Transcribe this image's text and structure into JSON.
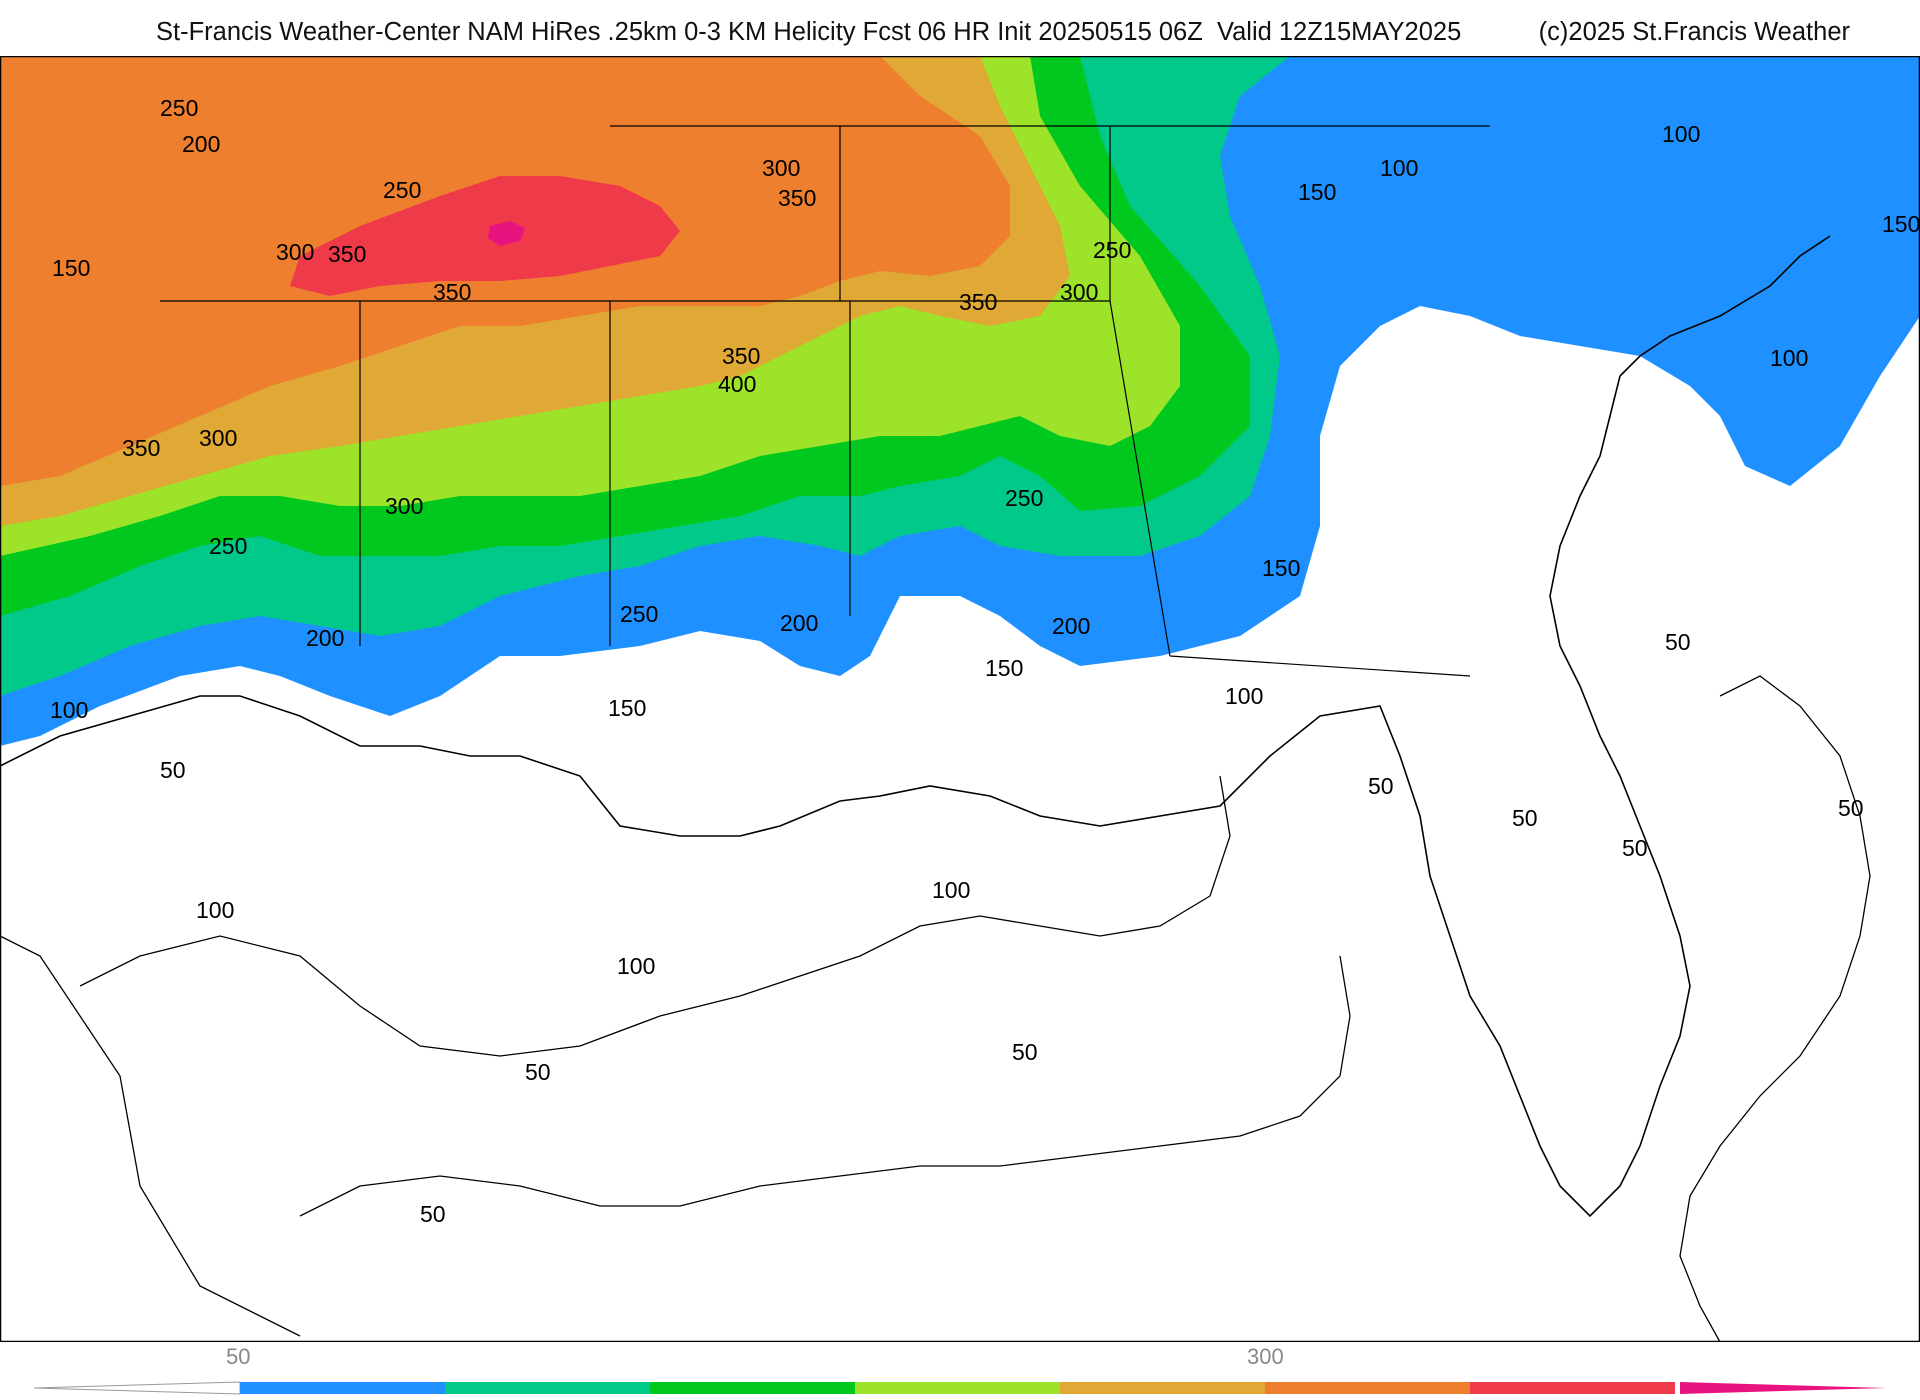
{
  "header": {
    "title": "St-Francis Weather-Center NAM HiRes .25km 0-3 KM Helicity Fcst 06 HR Init 20250515 06Z  Valid 12Z15MAY2025",
    "credit": "(c)2025 St.Francis Weather"
  },
  "map": {
    "field": "0-3 KM Helicity",
    "region": "Southeastern United States and Gulf of Mexico",
    "shading_colors": [
      "#1e90ff",
      "#00c98a",
      "#00c81e",
      "#9de32a",
      "#e0a835",
      "#ee7f2e",
      "#ef3a4a",
      "#e8137e"
    ],
    "contour_labels": [
      {
        "text": "250"
      },
      {
        "text": "200"
      },
      {
        "text": "250"
      },
      {
        "text": "150"
      },
      {
        "text": "300"
      },
      {
        "text": "350"
      },
      {
        "text": "300"
      },
      {
        "text": "350"
      },
      {
        "text": "350"
      },
      {
        "text": "350"
      },
      {
        "text": "400"
      },
      {
        "text": "350"
      },
      {
        "text": "350"
      },
      {
        "text": "300"
      },
      {
        "text": "300"
      },
      {
        "text": "250"
      },
      {
        "text": "300"
      },
      {
        "text": "250"
      },
      {
        "text": "250"
      },
      {
        "text": "250"
      },
      {
        "text": "200"
      },
      {
        "text": "200"
      },
      {
        "text": "200"
      },
      {
        "text": "150"
      },
      {
        "text": "150"
      },
      {
        "text": "150"
      },
      {
        "text": "100"
      },
      {
        "text": "100"
      },
      {
        "text": "100"
      },
      {
        "text": "100"
      },
      {
        "text": "150"
      },
      {
        "text": "100"
      },
      {
        "text": "50"
      },
      {
        "text": "50"
      },
      {
        "text": "50"
      },
      {
        "text": "50"
      },
      {
        "text": "50"
      },
      {
        "text": "100"
      },
      {
        "text": "100"
      },
      {
        "text": "100"
      },
      {
        "text": "50"
      },
      {
        "text": "50"
      },
      {
        "text": "50"
      },
      {
        "text": "150"
      }
    ]
  },
  "colorbar": {
    "tick_labels": [
      "50",
      "300"
    ],
    "colors": [
      "#1e90ff",
      "#00c98a",
      "#00c81e",
      "#9de32a",
      "#e0a835",
      "#ee7f2e",
      "#ef3a4a",
      "#e8137e"
    ]
  }
}
